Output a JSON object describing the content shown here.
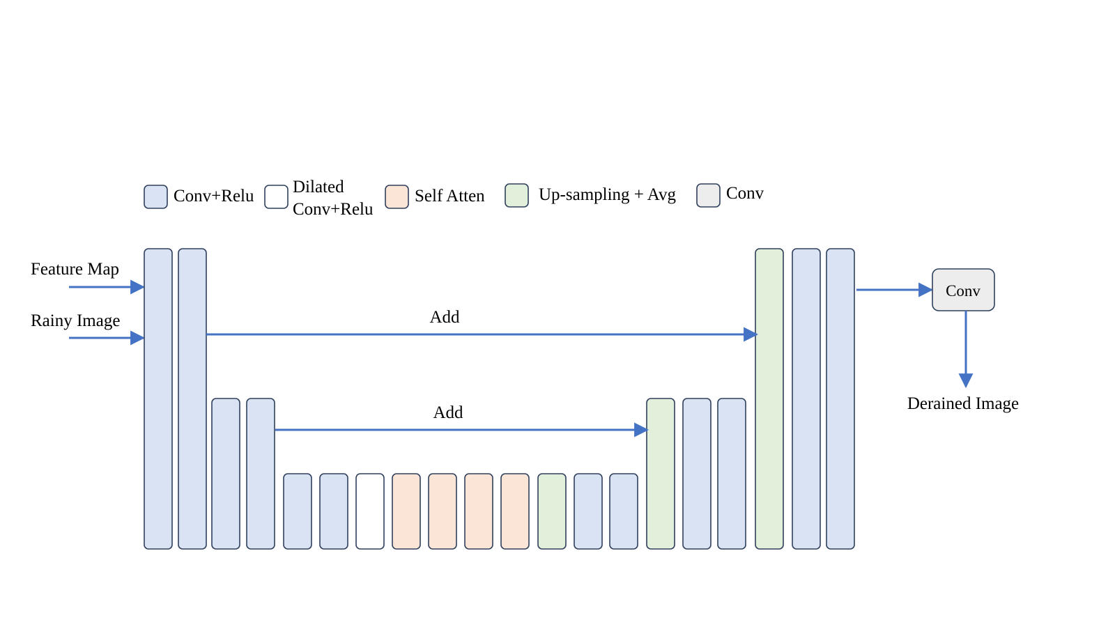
{
  "legend": [
    {
      "key": "conv_relu",
      "label_lines": [
        "Conv+Relu"
      ]
    },
    {
      "key": "dilated",
      "label_lines": [
        "Dilated",
        "Conv+Relu"
      ]
    },
    {
      "key": "self_atten",
      "label_lines": [
        "Self Atten"
      ]
    },
    {
      "key": "upsample",
      "label_lines": [
        "Up-sampling + Avg"
      ]
    },
    {
      "key": "conv",
      "label_lines": [
        "Conv"
      ]
    }
  ],
  "colors": {
    "conv_relu": "#dae3f3",
    "dilated": "#ffffff",
    "self_atten": "#fbe5d6",
    "upsample": "#e2efda",
    "conv": "#ededed",
    "stroke": "#2f3f5c",
    "arrow": "#4472c4"
  },
  "inputs": {
    "feature_map": "Feature Map",
    "rainy_image": "Rainy Image"
  },
  "skip_labels": {
    "top": "Add",
    "bottom": "Add"
  },
  "blocks": [
    {
      "type": "conv_relu"
    },
    {
      "type": "conv_relu"
    },
    {
      "type": "conv_relu"
    },
    {
      "type": "conv_relu"
    },
    {
      "type": "conv_relu"
    },
    {
      "type": "conv_relu"
    },
    {
      "type": "dilated"
    },
    {
      "type": "self_atten"
    },
    {
      "type": "self_atten"
    },
    {
      "type": "self_atten"
    },
    {
      "type": "self_atten"
    },
    {
      "type": "upsample"
    },
    {
      "type": "conv_relu"
    },
    {
      "type": "conv_relu"
    },
    {
      "type": "upsample"
    },
    {
      "type": "conv_relu"
    },
    {
      "type": "conv_relu"
    },
    {
      "type": "upsample"
    },
    {
      "type": "conv_relu"
    },
    {
      "type": "conv_relu"
    }
  ],
  "output": {
    "conv_label": "Conv",
    "result_label": "Derained Image"
  }
}
